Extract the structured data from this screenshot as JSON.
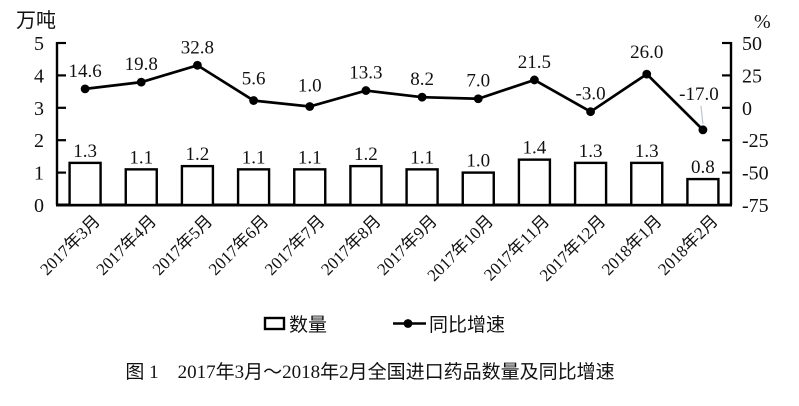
{
  "caption": "图 1　2017年3月～2018年2月全国进口药品数量及同比增速",
  "chart_data": {
    "type": "bar+line",
    "title": "2017年3月～2018年2月全国进口药品数量及同比增速",
    "categories": [
      "2017年3月",
      "2017年4月",
      "2017年5月",
      "2017年6月",
      "2017年7月",
      "2017年8月",
      "2017年9月",
      "2017年10月",
      "2017年11月",
      "2017年12月",
      "2018年1月",
      "2018年2月"
    ],
    "series": [
      {
        "name": "数量",
        "type": "bar",
        "axis": "left",
        "values": [
          1.3,
          1.1,
          1.2,
          1.1,
          1.1,
          1.2,
          1.1,
          1.0,
          1.4,
          1.3,
          1.3,
          0.8
        ],
        "labels": [
          "1.3",
          "1.1",
          "1.2",
          "1.1",
          "1.1",
          "1.2",
          "1.1",
          "1.0",
          "1.4",
          "1.3",
          "1.3",
          "0.8"
        ]
      },
      {
        "name": "同比增速",
        "type": "line",
        "axis": "right",
        "values": [
          14.6,
          19.8,
          32.8,
          5.6,
          1.0,
          13.3,
          8.2,
          7.0,
          21.5,
          -3.0,
          26.0,
          -17.0
        ],
        "labels": [
          "14.6",
          "19.8",
          "32.8",
          "5.6",
          "1.0",
          "13.3",
          "8.2",
          "7.0",
          "21.5",
          "-3.0",
          "26.0",
          "-17.0"
        ]
      }
    ],
    "left_axis": {
      "unit": "万吨",
      "min": 0,
      "max": 5,
      "ticks": [
        0,
        1,
        2,
        3,
        4,
        5
      ]
    },
    "right_axis": {
      "unit": "%",
      "min": -75,
      "max": 50,
      "ticks": [
        50,
        25,
        0,
        -25,
        -50,
        -75
      ]
    },
    "legend": [
      "数量",
      "同比增速"
    ],
    "legend_position": "bottom",
    "grid": false,
    "colors": {
      "stroke": "#000000",
      "bar_fill": "#ffffff",
      "leader_line": "#b9c6d4"
    }
  }
}
